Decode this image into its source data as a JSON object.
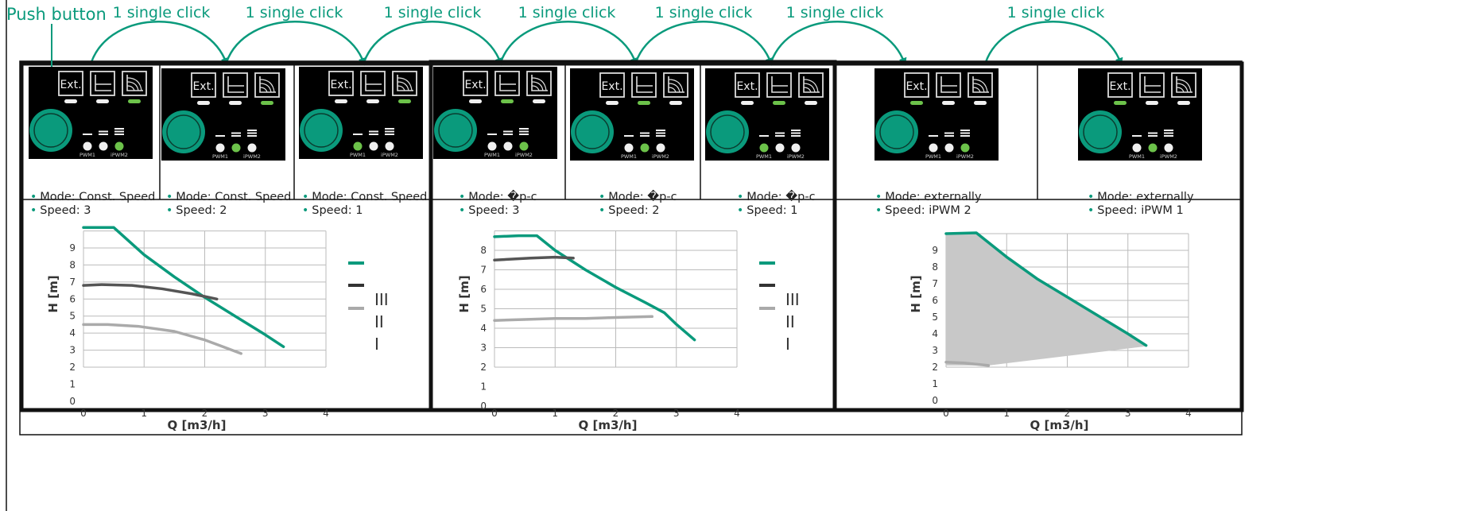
{
  "labels": {
    "push_button": "Push button",
    "click": "1 single click"
  },
  "panel_labels": {
    "ext": "Ext.",
    "pwm1": "PWM1",
    "ipwm2": "iPWM2"
  },
  "modes": [
    {
      "mode": "Mode: Const. Speed",
      "speed": "Speed: 3"
    },
    {
      "mode": "Mode: Const. Speed",
      "speed": "Speed: 2"
    },
    {
      "mode": "Mode: Const. Speed",
      "speed": "Speed: 1"
    },
    {
      "mode": "Mode: �p-c",
      "speed": "Speed: 3"
    },
    {
      "mode": "Mode: �p-c",
      "speed": "Speed: 2"
    },
    {
      "mode": "Mode: �p-c",
      "speed": "Speed: 1"
    },
    {
      "mode": "Mode: externally",
      "speed": "Speed: iPWM 2"
    },
    {
      "mode": "Mode: externally",
      "speed": "Speed: iPWM 1"
    }
  ],
  "legend_labels": [
    "III",
    "II",
    "I"
  ],
  "colors": {
    "accent": "#0a9a7c",
    "panel": "#000000",
    "dark_curve": "#555555",
    "light_curve": "#aaaaaa",
    "fill": "#c8c8c8"
  },
  "chart_data": [
    {
      "type": "line",
      "xlabel": "Q [m3/h]",
      "ylabel": "H [m]",
      "xlim": [
        0,
        4.0
      ],
      "ylim": [
        0,
        10
      ],
      "xticks": [
        "0",
        "1",
        "2",
        "3",
        "4"
      ],
      "yticks": [
        "0",
        "1",
        "2",
        "3",
        "4",
        "5",
        "6",
        "7",
        "8",
        "9"
      ],
      "series": [
        {
          "color": "#0a9a7c",
          "points": [
            [
              0,
              10.2
            ],
            [
              0.3,
              10.2
            ],
            [
              0.5,
              10.2
            ],
            [
              1,
              8.6
            ],
            [
              1.5,
              7.3
            ],
            [
              2,
              6.1
            ],
            [
              2.5,
              5
            ],
            [
              3,
              3.9
            ],
            [
              3.3,
              3.2
            ]
          ]
        },
        {
          "color": "#555555",
          "points": [
            [
              0,
              6.8
            ],
            [
              0.3,
              6.85
            ],
            [
              0.8,
              6.8
            ],
            [
              1.3,
              6.6
            ],
            [
              1.8,
              6.3
            ],
            [
              2.2,
              6.0
            ]
          ]
        },
        {
          "color": "#aaaaaa",
          "points": [
            [
              0,
              4.5
            ],
            [
              0.4,
              4.5
            ],
            [
              0.9,
              4.4
            ],
            [
              1.5,
              4.1
            ],
            [
              2,
              3.6
            ],
            [
              2.3,
              3.2
            ],
            [
              2.6,
              2.8
            ]
          ]
        }
      ]
    },
    {
      "type": "line",
      "xlabel": "Q [m3/h]",
      "ylabel": "H [m]",
      "xlim": [
        0,
        4.0
      ],
      "ylim": [
        0,
        9
      ],
      "xticks": [
        "0",
        "1",
        "2",
        "3",
        "4"
      ],
      "yticks": [
        "0",
        "1",
        "2",
        "3",
        "4",
        "5",
        "6",
        "7",
        "8"
      ],
      "series": [
        {
          "color": "#0a9a7c",
          "points": [
            [
              0,
              8.7
            ],
            [
              0.4,
              8.75
            ],
            [
              0.7,
              8.75
            ],
            [
              1,
              8.0
            ],
            [
              1.5,
              7.0
            ],
            [
              2,
              6.1
            ],
            [
              2.5,
              5.3
            ],
            [
              2.8,
              4.8
            ],
            [
              3,
              4.2
            ],
            [
              3.3,
              3.4
            ]
          ]
        },
        {
          "color": "#555555",
          "points": [
            [
              0,
              7.5
            ],
            [
              0.6,
              7.6
            ],
            [
              1,
              7.65
            ],
            [
              1.3,
              7.6
            ]
          ]
        },
        {
          "color": "#aaaaaa",
          "points": [
            [
              0,
              4.4
            ],
            [
              0.5,
              4.45
            ],
            [
              1,
              4.5
            ],
            [
              1.5,
              4.5
            ],
            [
              2,
              4.55
            ],
            [
              2.6,
              4.6
            ]
          ]
        }
      ]
    },
    {
      "type": "area",
      "xlabel": "Q [m3/h]",
      "ylabel": "H [m]",
      "xlim": [
        0,
        4.0
      ],
      "ylim": [
        0,
        10
      ],
      "xticks": [
        "0",
        "1",
        "2",
        "3",
        "4"
      ],
      "yticks": [
        "0",
        "1",
        "2",
        "3",
        "4",
        "5",
        "6",
        "7",
        "8",
        "9"
      ],
      "series": [
        {
          "color": "#0a9a7c",
          "points": [
            [
              0,
              10
            ],
            [
              0.5,
              10.05
            ],
            [
              1,
              8.6
            ],
            [
              1.5,
              7.3
            ],
            [
              2,
              6.2
            ],
            [
              2.5,
              5.1
            ],
            [
              3,
              4
            ],
            [
              3.3,
              3.3
            ]
          ]
        },
        {
          "color": "#aaaaaa",
          "points": [
            [
              0,
              2.3
            ],
            [
              0.3,
              2.25
            ],
            [
              0.7,
              2.1
            ]
          ]
        }
      ]
    }
  ]
}
